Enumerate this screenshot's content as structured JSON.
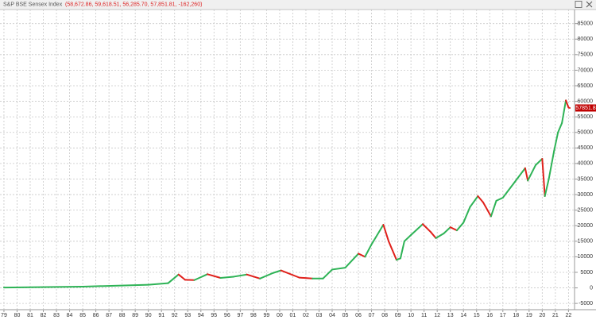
{
  "chart_data": {
    "type": "line",
    "title": "S&P BSE Sensex Index",
    "subtitle": "(58,672.86, 59,618.51, 56,285.70, 57,851.81, -162,260)",
    "last_label": "57851.8",
    "x": [
      1979,
      1985,
      1990,
      1991.5,
      1992.3,
      1992.8,
      1993.5,
      1994.5,
      1995.5,
      1996.5,
      1997.5,
      1998.5,
      1999.5,
      2000.1,
      2001.5,
      2002.5,
      2003.3,
      2004,
      2005,
      2006,
      2006.5,
      2007,
      2007.9,
      2008.3,
      2008.9,
      2009.2,
      2009.5,
      2010,
      2010.9,
      2011.5,
      2011.9,
      2012.5,
      2013,
      2013.5,
      2014,
      2014.5,
      2015.1,
      2015.5,
      2016.1,
      2016.5,
      2017,
      2017.9,
      2018.7,
      2018.9,
      2019.5,
      2020,
      2020.2,
      2020.5,
      2020.9,
      2021.2,
      2021.5,
      2021.8,
      2022.0,
      2022.1
    ],
    "series": [
      {
        "name": "S&P BSE Sensex Index",
        "values": [
          100,
          400,
          1000,
          1500,
          4300,
          2600,
          2500,
          4400,
          3200,
          3600,
          4300,
          3000,
          4800,
          5600,
          3300,
          3000,
          3000,
          5900,
          6500,
          11000,
          10000,
          14000,
          20300,
          15000,
          9000,
          9500,
          15000,
          17000,
          20500,
          18000,
          16000,
          17500,
          19500,
          18500,
          21000,
          26000,
          29500,
          27500,
          23000,
          28000,
          29000,
          34000,
          38500,
          34500,
          39500,
          41500,
          29500,
          35000,
          44000,
          50000,
          53000,
          60300,
          58000,
          57851.81
        ]
      }
    ],
    "up_color": "#2eb356",
    "down_color": "#e0201b",
    "xlim": [
      1978.7,
      2022.4
    ],
    "ylim": [
      -6500,
      89000
    ],
    "yticks": [
      -5000,
      0,
      5000,
      10000,
      15000,
      20000,
      25000,
      30000,
      35000,
      40000,
      45000,
      50000,
      55000,
      60000,
      65000,
      70000,
      75000,
      80000,
      85000
    ],
    "xticks": [
      {
        "value": 1979,
        "label": "79"
      },
      {
        "value": 1980,
        "label": "80"
      },
      {
        "value": 1981,
        "label": "81"
      },
      {
        "value": 1982,
        "label": "82"
      },
      {
        "value": 1983,
        "label": "83"
      },
      {
        "value": 1984,
        "label": "84"
      },
      {
        "value": 1985,
        "label": "85"
      },
      {
        "value": 1986,
        "label": "86"
      },
      {
        "value": 1987,
        "label": "87"
      },
      {
        "value": 1988,
        "label": "88"
      },
      {
        "value": 1989,
        "label": "89"
      },
      {
        "value": 1990,
        "label": "90"
      },
      {
        "value": 1991,
        "label": "91"
      },
      {
        "value": 1992,
        "label": "92"
      },
      {
        "value": 1993,
        "label": "93"
      },
      {
        "value": 1994,
        "label": "94"
      },
      {
        "value": 1995,
        "label": "95"
      },
      {
        "value": 1996,
        "label": "96"
      },
      {
        "value": 1997,
        "label": "97"
      },
      {
        "value": 1998,
        "label": "98"
      },
      {
        "value": 1999,
        "label": "99"
      },
      {
        "value": 2000,
        "label": "00"
      },
      {
        "value": 2001,
        "label": "01"
      },
      {
        "value": 2002,
        "label": "02"
      },
      {
        "value": 2003,
        "label": "03"
      },
      {
        "value": 2004,
        "label": "04"
      },
      {
        "value": 2005,
        "label": "05"
      },
      {
        "value": 2006,
        "label": "06"
      },
      {
        "value": 2007,
        "label": "07"
      },
      {
        "value": 2008,
        "label": "08"
      },
      {
        "value": 2009,
        "label": "09"
      },
      {
        "value": 2010,
        "label": "10"
      },
      {
        "value": 2011,
        "label": "11"
      },
      {
        "value": 2012,
        "label": "12"
      },
      {
        "value": 2013,
        "label": "13"
      },
      {
        "value": 2014,
        "label": "14"
      },
      {
        "value": 2015,
        "label": "15"
      },
      {
        "value": 2016,
        "label": "16"
      },
      {
        "value": 2017,
        "label": "17"
      },
      {
        "value": 2018,
        "label": "18"
      },
      {
        "value": 2019,
        "label": "19"
      },
      {
        "value": 2020,
        "label": "20"
      },
      {
        "value": 2021,
        "label": "21"
      },
      {
        "value": 2022,
        "label": "22"
      }
    ],
    "grid": true
  }
}
